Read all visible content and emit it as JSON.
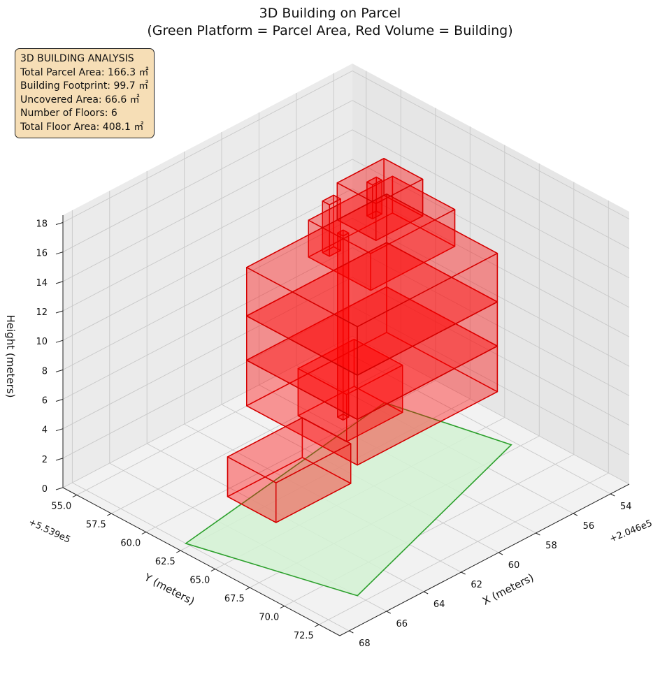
{
  "chart_data": {
    "type": "3d-box",
    "title": "3D Building on Parcel",
    "subtitle": "(Green Platform = Parcel Area, Red Volume = Building)",
    "xlabel": "X (meters)",
    "ylabel": "Y (meters)",
    "zlabel": "Height (meters)",
    "x_offset_label": "+2.046e5",
    "y_offset_label": "+5.539e5",
    "x_ticks": [
      "54",
      "56",
      "58",
      "60",
      "62",
      "64",
      "66",
      "68"
    ],
    "y_ticks": [
      "55.0",
      "57.5",
      "60.0",
      "62.5",
      "65.0",
      "67.5",
      "70.0",
      "72.5"
    ],
    "z_ticks": [
      "0",
      "2",
      "4",
      "6",
      "8",
      "10",
      "12",
      "14",
      "16",
      "18"
    ],
    "xlim": [
      53,
      68.5
    ],
    "ylim": [
      54,
      74
    ],
    "zlim": [
      0,
      18.5
    ],
    "grid": true,
    "parcel": {
      "color": "#2ca02c",
      "fill": "#d4f2d4",
      "corners": [
        [
          55.5,
          59.7,
          0
        ],
        [
          54.2,
          67.1,
          0
        ],
        [
          66.0,
          71.9,
          0
        ],
        [
          68.0,
          62.2,
          0
        ]
      ]
    },
    "building": {
      "color": "#ff0000",
      "floors": 6,
      "boxes": [
        {
          "x": [
            60.5,
            64.5
          ],
          "y": [
            60.5,
            64.0
          ],
          "z": [
            0,
            2.7
          ]
        },
        {
          "x": [
            55.5,
            58.5
          ],
          "y": [
            57.5,
            61.0
          ],
          "z": [
            0,
            3.2
          ]
        },
        {
          "x": [
            57.2,
            57.5
          ],
          "y": [
            59.0,
            59.4
          ],
          "z": [
            0,
            12.5
          ]
        },
        {
          "x": [
            54.5,
            62.0
          ],
          "y": [
            58.5,
            66.5
          ],
          "z": [
            3.5,
            6.6
          ]
        },
        {
          "x": [
            54.5,
            62.0
          ],
          "y": [
            58.5,
            66.5
          ],
          "z": [
            6.6,
            9.6
          ]
        },
        {
          "x": [
            54.5,
            62.0
          ],
          "y": [
            58.5,
            66.5
          ],
          "z": [
            9.6,
            12.9
          ]
        },
        {
          "x": [
            55.3,
            59.8
          ],
          "y": [
            60.0,
            64.5
          ],
          "z": [
            12.9,
            15.4
          ]
        },
        {
          "x": [
            56.5,
            59.0
          ],
          "y": [
            61.0,
            63.8
          ],
          "z": [
            15.4,
            17.9
          ]
        },
        {
          "x": [
            57.5,
            58.0
          ],
          "y": [
            61.8,
            62.2
          ],
          "z": [
            15.4,
            17.7
          ]
        },
        {
          "x": [
            58.3,
            58.9
          ],
          "y": [
            59.8,
            60.3
          ],
          "z": [
            12.5,
            16.0
          ]
        }
      ]
    }
  },
  "info": {
    "heading": "3D BUILDING ANALYSIS",
    "lines": [
      "Total Parcel Area: 166.3 ㎡",
      "Building Footprint: 99.7 ㎡",
      "Uncovered Area: 66.6 ㎡",
      "Number of Floors: 6",
      "Total Floor Area: 408.1 ㎡"
    ]
  }
}
